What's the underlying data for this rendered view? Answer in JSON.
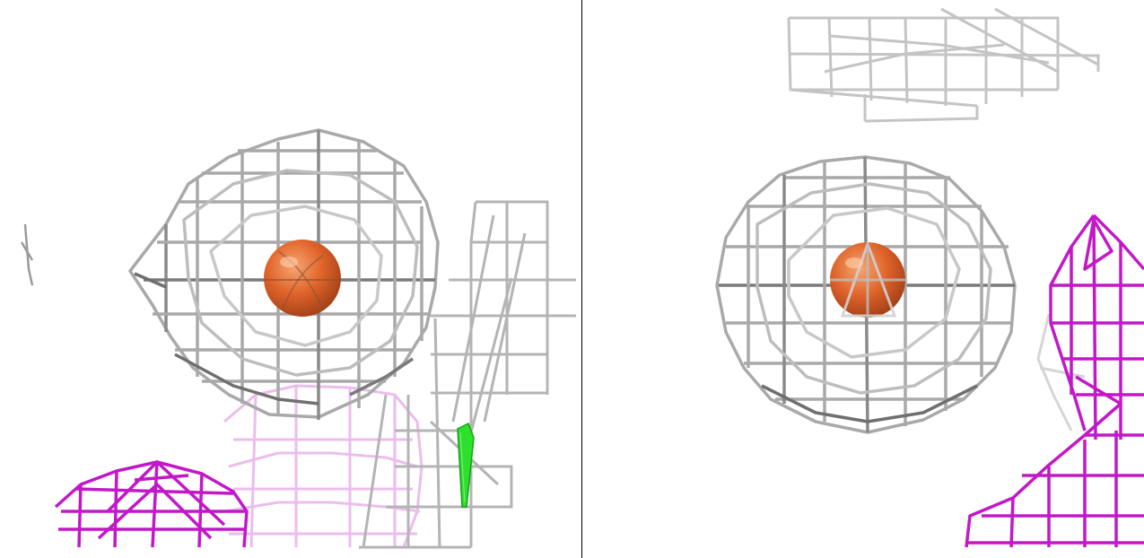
{
  "scene": {
    "viewports": [
      {
        "id": "left",
        "style": "wireframe-density-map",
        "has_ligand": true,
        "has_green_marker": true
      },
      {
        "id": "right",
        "style": "wireframe-density-map",
        "has_ligand": true,
        "has_green_marker": false
      }
    ],
    "colors": {
      "background": "#ffffff",
      "grey_mesh": "#a9a9a9",
      "grey_mesh_dark": "#6f6f6f",
      "magenta_mesh": "#c218c8",
      "pink_mesh": "#e5a8e8",
      "ligand_sphere": "#e0642a",
      "green_marker": "#22dd22",
      "frame": "#000000"
    },
    "icons": [
      "density-mesh-icon",
      "ion-sphere-icon",
      "magenta-mesh-icon",
      "green-marker-icon"
    ]
  }
}
